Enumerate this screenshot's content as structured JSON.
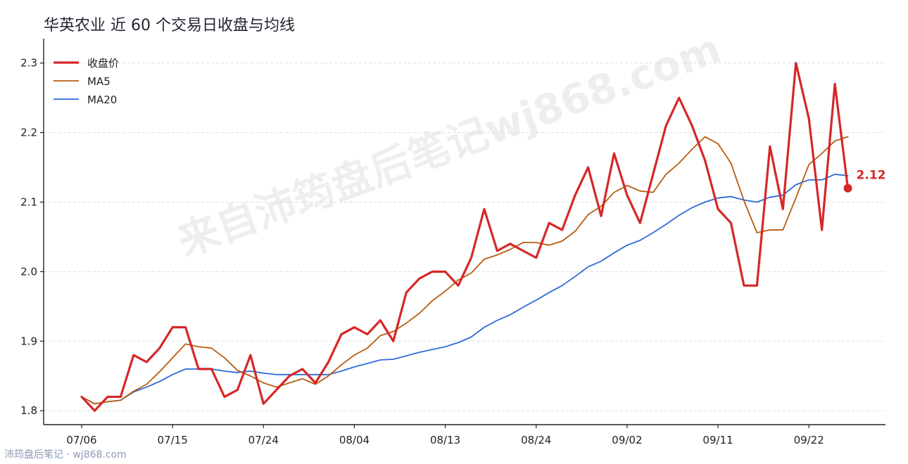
{
  "title": "华英农业 近 60 个交易日收盘与均线",
  "watermark": "来自沛筠盘后笔记wj868.com",
  "footer": "沛筠盘后笔记 · wj868.com",
  "colors": {
    "close": "#d62728",
    "ma5": "#b85c10",
    "ma20": "#2f6bd8"
  },
  "chart_data": {
    "type": "line",
    "title": "华英农业 近 60 个交易日收盘与均线",
    "xlabel": "",
    "ylabel": "",
    "ylim": [
      1.78,
      2.33
    ],
    "yticks": [
      1.8,
      1.9,
      2.0,
      2.1,
      2.2,
      2.3
    ],
    "xtick_labels": [
      "07/06",
      "07/15",
      "07/24",
      "08/04",
      "08/13",
      "08/24",
      "09/02",
      "09/11",
      "09/22"
    ],
    "xtick_index": [
      0,
      7,
      14,
      21,
      28,
      35,
      42,
      49,
      56
    ],
    "grid": "horizontal dashed",
    "legend_position": "top-left",
    "last_label": "2.12",
    "series": [
      {
        "name": "收盘价",
        "color": "#d62728",
        "width": 3.2,
        "values": [
          1.82,
          1.8,
          1.82,
          1.82,
          1.88,
          1.87,
          1.89,
          1.92,
          1.92,
          1.86,
          1.86,
          1.82,
          1.83,
          1.88,
          1.81,
          1.83,
          1.85,
          1.86,
          1.84,
          1.87,
          1.91,
          1.92,
          1.91,
          1.93,
          1.9,
          1.97,
          1.99,
          2.0,
          2.0,
          1.98,
          2.02,
          2.09,
          2.03,
          2.04,
          2.03,
          2.02,
          2.07,
          2.06,
          2.11,
          2.15,
          2.08,
          2.17,
          2.11,
          2.07,
          2.14,
          2.21,
          2.25,
          2.21,
          2.16,
          2.09,
          2.07,
          1.98,
          1.98,
          2.18,
          2.09,
          2.3,
          2.22,
          2.06,
          2.27,
          2.12
        ]
      },
      {
        "name": "MA5",
        "color": "#b85c10",
        "width": 1.8,
        "values": [
          1.82,
          1.81,
          1.813,
          1.815,
          1.828,
          1.838,
          1.856,
          1.876,
          1.896,
          1.892,
          1.89,
          1.876,
          1.858,
          1.85,
          1.84,
          1.834,
          1.84,
          1.846,
          1.838,
          1.85,
          1.866,
          1.88,
          1.89,
          1.908,
          1.914,
          1.926,
          1.94,
          1.958,
          1.972,
          1.988,
          1.998,
          2.018,
          2.024,
          2.032,
          2.042,
          2.042,
          2.038,
          2.044,
          2.058,
          2.082,
          2.094,
          2.114,
          2.124,
          2.116,
          2.114,
          2.14,
          2.156,
          2.176,
          2.194,
          2.184,
          2.156,
          2.102,
          2.056,
          2.06,
          2.06,
          2.106,
          2.154,
          2.17,
          2.188,
          2.194
        ]
      },
      {
        "name": "MA20",
        "color": "#2f6bd8",
        "width": 1.8,
        "values": [
          1.82,
          1.81,
          1.813,
          1.815,
          1.827,
          1.834,
          1.842,
          1.852,
          1.86,
          1.86,
          1.86,
          1.857,
          1.855,
          1.857,
          1.854,
          1.852,
          1.852,
          1.852,
          1.852,
          1.852,
          1.857,
          1.863,
          1.868,
          1.873,
          1.874,
          1.879,
          1.884,
          1.888,
          1.892,
          1.898,
          1.906,
          1.92,
          1.93,
          1.938,
          1.949,
          1.959,
          1.97,
          1.98,
          1.993,
          2.007,
          2.015,
          2.027,
          2.038,
          2.045,
          2.056,
          2.068,
          2.081,
          2.092,
          2.1,
          2.106,
          2.108,
          2.103,
          2.1,
          2.107,
          2.11,
          2.125,
          2.132,
          2.132,
          2.14,
          2.138
        ]
      }
    ]
  }
}
